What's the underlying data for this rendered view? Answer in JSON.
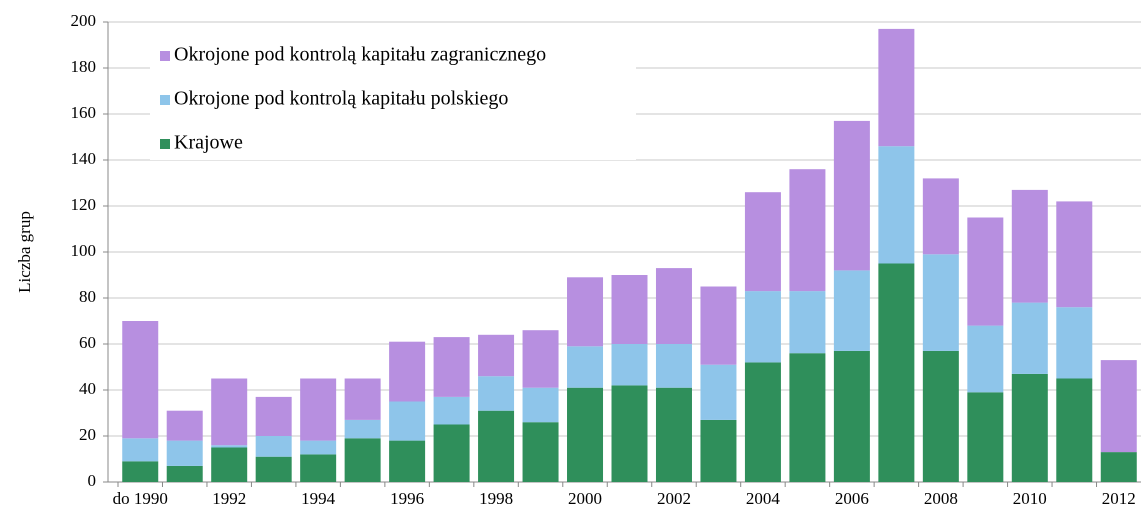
{
  "chart_data": {
    "type": "stacked_bar",
    "y_label": "Liczba grup",
    "categories": [
      "do 1990",
      null,
      "1992",
      null,
      "1994",
      null,
      "1996",
      null,
      "1998",
      null,
      "2000",
      null,
      "2002",
      null,
      "2004",
      null,
      "2006",
      null,
      "2008",
      null,
      "2010",
      null,
      "2012"
    ],
    "series": [
      {
        "name": "Krajowe",
        "color": "#2f8f5b",
        "values": [
          9,
          7,
          15,
          11,
          12,
          19,
          18,
          25,
          31,
          26,
          41,
          42,
          41,
          27,
          52,
          56,
          57,
          95,
          57,
          39,
          47,
          45,
          13
        ]
      },
      {
        "name": "Okrojone pod kontrolą kapitału polskiego",
        "color": "#8ec5ea",
        "values": [
          10,
          11,
          1,
          9,
          6,
          8,
          17,
          12,
          15,
          15,
          18,
          18,
          19,
          24,
          31,
          27,
          35,
          51,
          42,
          29,
          31,
          31,
          0
        ]
      },
      {
        "name": "Okrojone pod kontrolą kapitału zagranicznego",
        "color": "#b78fe0",
        "values": [
          51,
          13,
          29,
          17,
          27,
          18,
          26,
          26,
          18,
          25,
          30,
          30,
          33,
          34,
          43,
          53,
          65,
          51,
          33,
          47,
          49,
          46,
          40
        ]
      }
    ],
    "ylim": [
      0,
      200
    ],
    "yticks": [
      0,
      20,
      40,
      60,
      80,
      100,
      120,
      140,
      160,
      180,
      200
    ],
    "grid": true
  }
}
